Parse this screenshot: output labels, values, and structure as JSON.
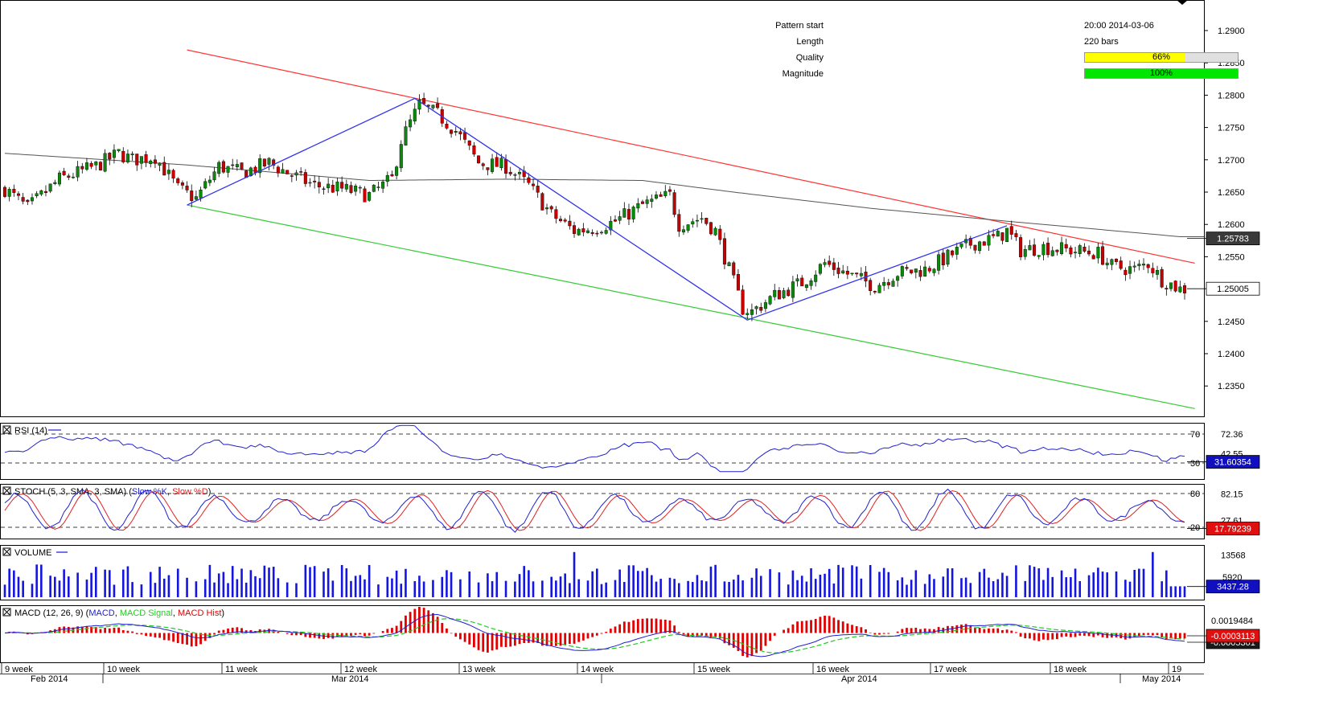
{
  "pattern_info": {
    "pattern_start_label": "Pattern start",
    "pattern_start_value": "20:00 2014-03-06",
    "length_label": "Length",
    "length_value": "220 bars",
    "quality_label": "Quality",
    "quality_value": "66%",
    "quality_fraction": 0.66,
    "magnitude_label": "Magnitude",
    "magnitude_value": "100%",
    "magnitude_fraction": 1.0
  },
  "colors": {
    "bull": "#0a8a0a",
    "bear": "#c80000",
    "quality_fill": "#ffff00",
    "magnitude_fill": "#00e600",
    "upper_line": "#ff3333",
    "lower_line": "#33cc33",
    "zigzag": "#3333ee",
    "ma": "#555555",
    "rsi": "#2020d0",
    "stoch_k": "#2020d0",
    "stoch_d": "#e02020",
    "volume": "#1515e0",
    "macd": "#2020d0",
    "macd_signal": "#22cc22",
    "macd_hist": "#e00000"
  },
  "chart_data": [
    {
      "type": "candlestick",
      "name": "price",
      "y_ticks": [
        "1.2900",
        "1.2850",
        "1.2800",
        "1.2750",
        "1.2700",
        "1.2650",
        "1.2600",
        "1.2550",
        "1.2450",
        "1.2400",
        "1.2350"
      ],
      "ylim": [
        1.229,
        1.2935
      ],
      "current_price": "1.25005",
      "ma_value": "1.25783",
      "x_week_labels": [
        "9 week",
        "10 week",
        "11 week",
        "12 week",
        "13 week",
        "14 week",
        "15 week",
        "16 week",
        "17 week",
        "18 week",
        "19"
      ],
      "x_month_labels": [
        "Feb 2014",
        "Mar 2014",
        "Apr 2014",
        "May 2014"
      ],
      "bar_count": 260,
      "pattern": {
        "upper_line": [
          [
            40,
            1.287
          ],
          [
            257,
            1.254
          ]
        ],
        "lower_line": [
          [
            40,
            1.263
          ],
          [
            257,
            1.2315
          ]
        ],
        "zigzag": [
          [
            40,
            1.263
          ],
          [
            90,
            1.2795
          ],
          [
            163,
            1.2452
          ],
          [
            220,
            1.2598
          ]
        ]
      },
      "anchors": [
        [
          0,
          1.2655
        ],
        [
          5,
          1.2625
        ],
        [
          12,
          1.267
        ],
        [
          20,
          1.269
        ],
        [
          25,
          1.271
        ],
        [
          28,
          1.27
        ],
        [
          33,
          1.2705
        ],
        [
          38,
          1.2655
        ],
        [
          42,
          1.264
        ],
        [
          47,
          1.269
        ],
        [
          52,
          1.268
        ],
        [
          58,
          1.2695
        ],
        [
          62,
          1.268
        ],
        [
          68,
          1.266
        ],
        [
          74,
          1.2655
        ],
        [
          80,
          1.2645
        ],
        [
          85,
          1.267
        ],
        [
          87,
          1.273
        ],
        [
          91,
          1.2785
        ],
        [
          95,
          1.277
        ],
        [
          99,
          1.2745
        ],
        [
          104,
          1.2695
        ],
        [
          110,
          1.269
        ],
        [
          115,
          1.266
        ],
        [
          120,
          1.2615
        ],
        [
          125,
          1.259
        ],
        [
          130,
          1.2595
        ],
        [
          134,
          1.2605
        ],
        [
          140,
          1.263
        ],
        [
          146,
          1.2645
        ],
        [
          148,
          1.26
        ],
        [
          153,
          1.261
        ],
        [
          156,
          1.259
        ],
        [
          159,
          1.253
        ],
        [
          162,
          1.247
        ],
        [
          164,
          1.2465
        ],
        [
          169,
          1.249
        ],
        [
          175,
          1.251
        ],
        [
          180,
          1.254
        ],
        [
          186,
          1.252
        ],
        [
          191,
          1.2505
        ],
        [
          196,
          1.2525
        ],
        [
          202,
          1.253
        ],
        [
          207,
          1.255
        ],
        [
          212,
          1.257
        ],
        [
          218,
          1.258
        ],
        [
          220,
          1.259
        ],
        [
          223,
          1.256
        ],
        [
          228,
          1.2565
        ],
        [
          234,
          1.256
        ],
        [
          240,
          1.2555
        ],
        [
          243,
          1.2535
        ],
        [
          248,
          1.253
        ],
        [
          251,
          1.254
        ],
        [
          254,
          1.2515
        ],
        [
          258,
          1.25
        ]
      ],
      "ma_anchors": [
        [
          0,
          1.271
        ],
        [
          40,
          1.2692
        ],
        [
          80,
          1.2668
        ],
        [
          110,
          1.267
        ],
        [
          140,
          1.2668
        ],
        [
          160,
          1.265
        ],
        [
          190,
          1.2625
        ],
        [
          220,
          1.2605
        ],
        [
          258,
          1.2581
        ]
      ]
    },
    {
      "type": "line",
      "name": "rsi",
      "legend": "RSI (14)",
      "levels": [
        "70",
        "30"
      ],
      "y_ticks": [
        "72.36",
        "42.55"
      ],
      "current_value": "31.60354",
      "ylim": [
        0,
        100
      ]
    },
    {
      "type": "line",
      "name": "stochastic",
      "legend_prefix": "STOCH (5, 3, SMA, 3, SMA)",
      "legend_k": "Slow %K",
      "legend_d": "Slow %D",
      "levels": [
        "80",
        "20"
      ],
      "y_ticks": [
        "82.15",
        "27.61"
      ],
      "current_value": "17.79239",
      "ylim": [
        0,
        100
      ]
    },
    {
      "type": "bar",
      "name": "volume",
      "legend": "VOLUME",
      "y_ticks": [
        "13568",
        "5920"
      ],
      "current_value": "3437.28",
      "ylim": [
        0,
        16000
      ]
    },
    {
      "type": "line",
      "name": "macd",
      "legend_prefix": "MACD (12, 26, 9)",
      "legend_macd": "MACD",
      "legend_signal": "MACD Signal",
      "legend_hist": "MACD Hist",
      "y_ticks": [
        "0.0019484"
      ],
      "current_value": "-0.0003113",
      "second_value": "-0.0005301",
      "ylim": [
        -0.0042,
        0.0026
      ]
    }
  ]
}
